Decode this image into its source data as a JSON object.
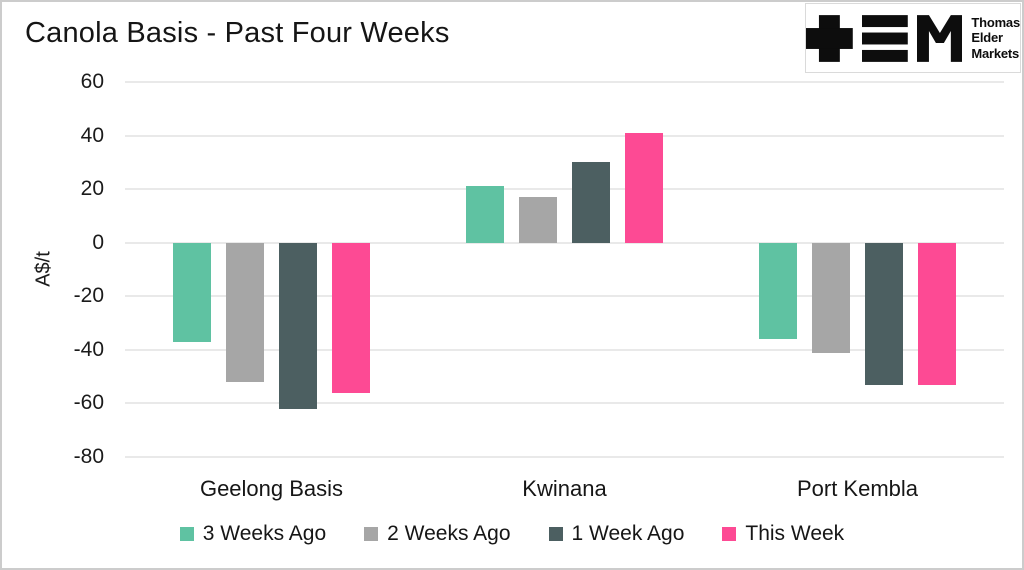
{
  "header": {
    "title": "Canola Basis - Past Four Weeks"
  },
  "logo": {
    "icons": [
      "plus-icon",
      "triple-bar-icon",
      "m-icon"
    ],
    "lines": [
      "Thomas",
      "Elder",
      "Markets"
    ],
    "color": "#0d0d0d"
  },
  "chart_data": {
    "type": "bar",
    "title": "Canola Basis - Past Four Weeks",
    "xlabel": "",
    "ylabel": "A$/t",
    "ylim": [
      -80,
      60
    ],
    "ytick_step": 20,
    "grid": true,
    "gridline_color": "#e9e9e9",
    "legend_position": "bottom",
    "categories": [
      "Geelong Basis",
      "Kwinana",
      "Port Kembla"
    ],
    "series": [
      {
        "name": "3 Weeks Ago",
        "color": "#5FC2A2",
        "values": [
          -37,
          21,
          -36
        ]
      },
      {
        "name": "2 Weeks Ago",
        "color": "#A6A6A6",
        "values": [
          -52,
          17,
          -41
        ]
      },
      {
        "name": "1 Week Ago",
        "color": "#4C5F61",
        "values": [
          -62,
          30,
          -53
        ]
      },
      {
        "name": "This Week",
        "color": "#FD4A94",
        "values": [
          -56,
          41,
          -53
        ]
      }
    ]
  }
}
